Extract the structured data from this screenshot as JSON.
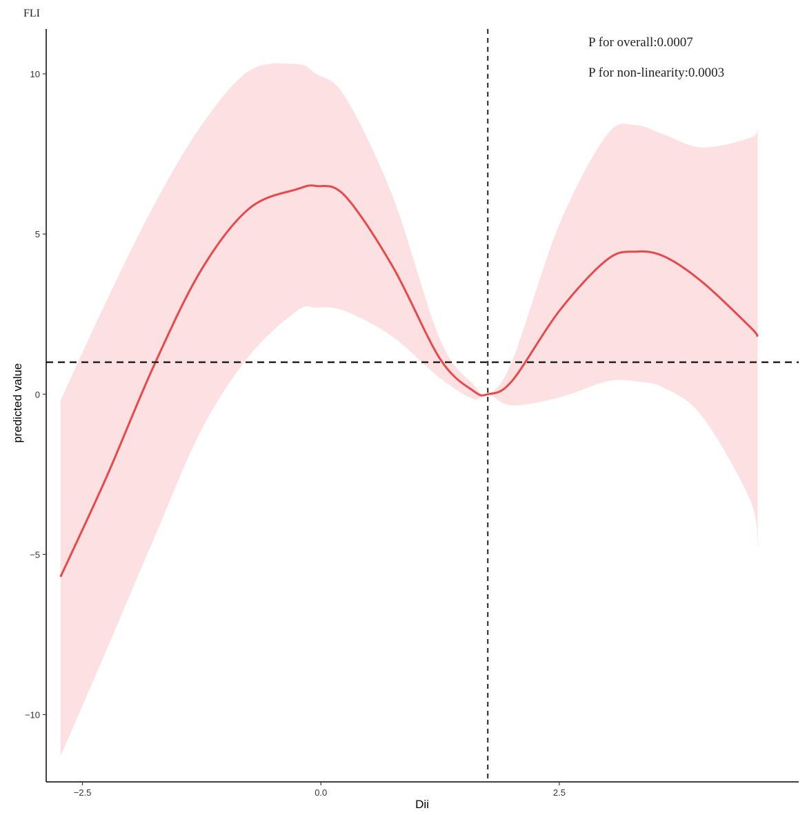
{
  "chart_data": {
    "type": "line",
    "title": "FLI",
    "xlabel": "Dii",
    "ylabel": "predicted value",
    "xlim": [
      -2.88,
      5.01
    ],
    "ylim": [
      -12.1,
      11.4
    ],
    "x_ticks": [
      {
        "value": -2.5,
        "label": "−2.5"
      },
      {
        "value": 0.0,
        "label": "0.0"
      },
      {
        "value": 2.5,
        "label": "2.5"
      }
    ],
    "y_ticks": [
      {
        "value": -10,
        "label": "−10"
      },
      {
        "value": -5,
        "label": "−5"
      },
      {
        "value": 0,
        "label": "0"
      },
      {
        "value": 5,
        "label": "5"
      },
      {
        "value": 10,
        "label": "10"
      }
    ],
    "grid": false,
    "reference_lines": {
      "vertical_x": 1.75,
      "horizontal_y": 1.0
    },
    "annotations": [
      "P for overall:0.0007",
      "P for non-linearity:0.0003"
    ],
    "colors": {
      "line": "#e8484a",
      "band": "#fde1e2",
      "reference": "#222222"
    },
    "series": [
      {
        "x": [
          -2.73,
          -2.25,
          -1.75,
          -1.25,
          -0.75,
          -0.25,
          -0.05,
          0.25,
          0.75,
          1.25,
          1.6,
          1.75,
          2.0,
          2.5,
          3.0,
          3.3,
          3.6,
          4.0,
          4.5,
          4.58
        ],
        "y": [
          -5.7,
          -2.6,
          0.9,
          3.9,
          5.8,
          6.4,
          6.5,
          6.2,
          4.0,
          1.1,
          0.1,
          0.0,
          0.4,
          2.6,
          4.2,
          4.45,
          4.3,
          3.5,
          2.1,
          1.8
        ],
        "lower": [
          -11.3,
          -8.0,
          -4.5,
          -1.1,
          1.2,
          2.6,
          2.7,
          2.6,
          1.8,
          0.5,
          -0.15,
          0.0,
          -0.35,
          -0.1,
          0.4,
          0.4,
          0.2,
          -0.7,
          -3.3,
          -4.8
        ],
        "upper": [
          -0.2,
          2.9,
          5.9,
          8.4,
          10.1,
          10.3,
          10.0,
          9.3,
          6.2,
          1.7,
          0.3,
          0.0,
          1.0,
          5.3,
          8.1,
          8.4,
          8.1,
          7.7,
          8.0,
          8.3
        ]
      }
    ]
  }
}
